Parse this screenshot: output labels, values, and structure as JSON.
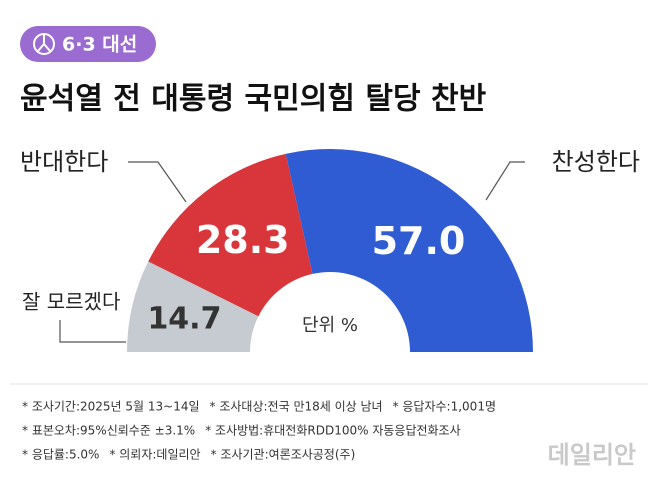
{
  "badge": "6·3 대선",
  "chart_data": {
    "type": "semi-donut",
    "title": "윤석열 전 대통령 국민의힘 탈당 찬반",
    "categories": [
      "잘 모르겠다",
      "반대한다",
      "찬성한다"
    ],
    "values": [
      14.7,
      28.3,
      57.0
    ],
    "value_labels": [
      "14.7",
      "28.3",
      "57.0"
    ],
    "colors": [
      "#c6cbd1",
      "#d9363c",
      "#2f5bd3"
    ],
    "center_label": "단위 %"
  },
  "notes": [
    [
      "* 조사기간:2025년 5월 13~14일",
      "* 조사대상:전국 만18세 이상 남녀",
      "* 응답자수:1,001명"
    ],
    [
      "* 표본오차:95%신뢰수준 ±3.1%",
      "* 조사방법:휴대전화RDD100% 자동응답전화조사"
    ],
    [
      "* 응답률:5.0%",
      "* 의뢰자:데일리안",
      "* 조사기관:여론조사공정(주)"
    ]
  ],
  "logo": "데일리안"
}
